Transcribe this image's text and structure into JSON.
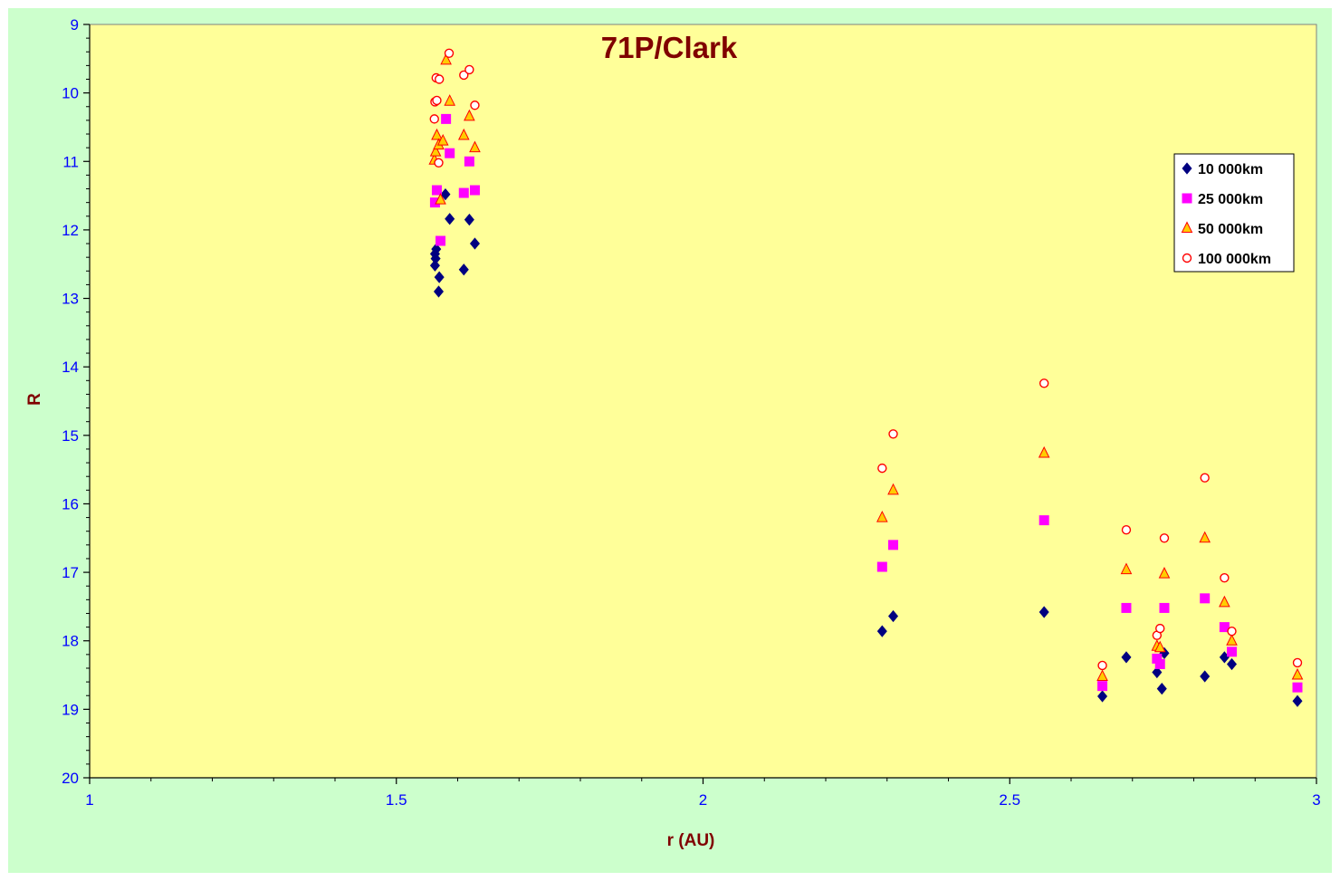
{
  "chart_data": {
    "type": "scatter",
    "title": "71P/Clark",
    "xlabel": "r (AU)",
    "ylabel": "R",
    "xlim": [
      1,
      3
    ],
    "ylim": [
      9,
      20
    ],
    "y_inverted": true,
    "x_ticks": [
      "1",
      "1.5",
      "2",
      "2.5",
      "3"
    ],
    "x_tick_values": [
      1,
      1.5,
      2,
      2.5,
      3
    ],
    "y_ticks": [
      "9",
      "10",
      "11",
      "12",
      "13",
      "14",
      "15",
      "16",
      "17",
      "18",
      "19",
      "20"
    ],
    "y_tick_values": [
      9,
      10,
      11,
      12,
      13,
      14,
      15,
      16,
      17,
      18,
      19,
      20
    ],
    "grid": false,
    "legend_position": "right",
    "plot_background": "#ffff99",
    "chart_background": "#ccffcc",
    "series": [
      {
        "name": "10 000km",
        "marker": "diamond",
        "color": "#000080",
        "points": [
          [
            1.563,
            12.35
          ],
          [
            1.565,
            12.28
          ],
          [
            1.564,
            12.42
          ],
          [
            1.563,
            12.52
          ],
          [
            1.57,
            12.69
          ],
          [
            1.569,
            12.9
          ],
          [
            1.58,
            11.48
          ],
          [
            1.587,
            11.84
          ],
          [
            1.61,
            12.58
          ],
          [
            1.619,
            11.85
          ],
          [
            1.628,
            12.2
          ],
          [
            2.292,
            17.86
          ],
          [
            2.31,
            17.64
          ],
          [
            2.556,
            17.58
          ],
          [
            2.651,
            18.81
          ],
          [
            2.69,
            18.24
          ],
          [
            2.74,
            18.46
          ],
          [
            2.748,
            18.7
          ],
          [
            2.752,
            18.18
          ],
          [
            2.818,
            18.52
          ],
          [
            2.85,
            18.24
          ],
          [
            2.862,
            18.34
          ],
          [
            2.969,
            18.88
          ]
        ]
      },
      {
        "name": "25 000km",
        "marker": "square",
        "color": "#ff00ff",
        "points": [
          [
            1.563,
            11.6
          ],
          [
            1.566,
            11.42
          ],
          [
            1.572,
            12.16
          ],
          [
            1.581,
            10.38
          ],
          [
            1.587,
            10.88
          ],
          [
            1.61,
            11.46
          ],
          [
            1.619,
            11.0
          ],
          [
            1.628,
            11.42
          ],
          [
            2.292,
            16.92
          ],
          [
            2.31,
            16.6
          ],
          [
            2.556,
            16.24
          ],
          [
            2.651,
            18.66
          ],
          [
            2.69,
            17.52
          ],
          [
            2.74,
            18.26
          ],
          [
            2.745,
            18.34
          ],
          [
            2.752,
            17.52
          ],
          [
            2.818,
            17.38
          ],
          [
            2.85,
            17.8
          ],
          [
            2.862,
            18.16
          ],
          [
            2.969,
            18.68
          ]
        ]
      },
      {
        "name": "50 000km",
        "marker": "triangle",
        "color": "#ffcc00",
        "points": [
          [
            1.562,
            10.98
          ],
          [
            1.564,
            10.86
          ],
          [
            1.566,
            10.62
          ],
          [
            1.569,
            10.76
          ],
          [
            1.572,
            11.56
          ],
          [
            1.576,
            10.7
          ],
          [
            1.581,
            9.52
          ],
          [
            1.587,
            10.12
          ],
          [
            1.61,
            10.62
          ],
          [
            1.619,
            10.34
          ],
          [
            1.628,
            10.8
          ],
          [
            2.292,
            16.2
          ],
          [
            2.31,
            15.8
          ],
          [
            2.556,
            15.26
          ],
          [
            2.651,
            18.52
          ],
          [
            2.69,
            16.96
          ],
          [
            2.74,
            18.08
          ],
          [
            2.745,
            18.1
          ],
          [
            2.752,
            17.02
          ],
          [
            2.818,
            16.5
          ],
          [
            2.85,
            17.44
          ],
          [
            2.862,
            18.0
          ],
          [
            2.969,
            18.5
          ]
        ]
      },
      {
        "name": "100 000km",
        "marker": "circle",
        "color": "#ff0000",
        "points": [
          [
            1.562,
            10.38
          ],
          [
            1.563,
            10.13
          ],
          [
            1.566,
            10.11
          ],
          [
            1.565,
            9.78
          ],
          [
            1.57,
            9.8
          ],
          [
            1.569,
            11.02
          ],
          [
            1.586,
            9.42
          ],
          [
            1.61,
            9.74
          ],
          [
            1.619,
            9.66
          ],
          [
            1.628,
            10.18
          ],
          [
            2.292,
            15.48
          ],
          [
            2.31,
            14.98
          ],
          [
            2.556,
            14.24
          ],
          [
            2.651,
            18.36
          ],
          [
            2.69,
            16.38
          ],
          [
            2.74,
            17.92
          ],
          [
            2.745,
            17.82
          ],
          [
            2.752,
            16.5
          ],
          [
            2.818,
            15.62
          ],
          [
            2.85,
            17.08
          ],
          [
            2.862,
            17.86
          ],
          [
            2.969,
            18.32
          ]
        ]
      }
    ]
  }
}
